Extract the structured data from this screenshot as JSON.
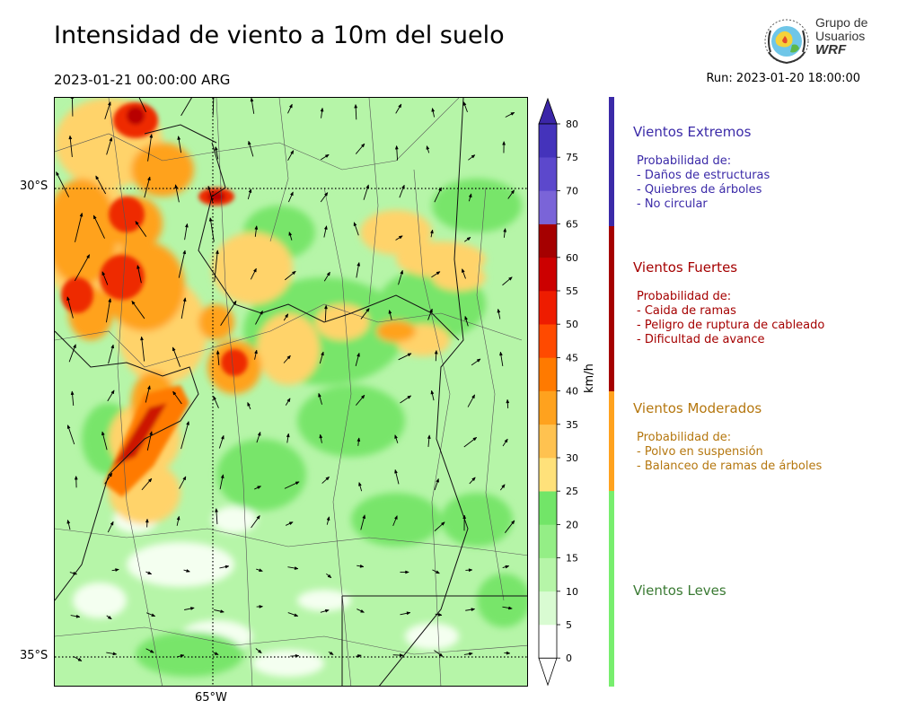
{
  "header": {
    "title": "Intensidad de viento a 10m del suelo",
    "valid_time": "2023-01-21 00:00:00 ARG",
    "run": "Run: 2023-01-20 18:00:00"
  },
  "logo": {
    "line1": "Grupo de",
    "line2": "Usuarios",
    "line3": "WRF"
  },
  "map": {
    "lat_labels": [
      "30°S",
      "35°S"
    ],
    "lon_labels": [
      "65°W"
    ]
  },
  "colorbar": {
    "unit": "km/h",
    "ticks": [
      "0",
      "5",
      "10",
      "15",
      "20",
      "25",
      "30",
      "35",
      "40",
      "45",
      "50",
      "55",
      "60",
      "65",
      "70",
      "75",
      "80"
    ],
    "colors": [
      "#ffffff",
      "#d9fbd2",
      "#b6f5a8",
      "#94ee86",
      "#72e568",
      "#ffe17a",
      "#ffc250",
      "#ffa21e",
      "#ff7a00",
      "#ff4a00",
      "#ee1c00",
      "#cc0000",
      "#a50000",
      "#7a64d8",
      "#5c48cc",
      "#4433bb"
    ],
    "extend_max_color": "#3b26a8"
  },
  "legend": {
    "extremos": {
      "title": "Vientos Extremos",
      "lines": [
        "Probabilidad de:",
        "- Daños de estructuras",
        "- Quiebres de árboles",
        "- No circular"
      ],
      "color": "#3b2aa8"
    },
    "fuertes": {
      "title": "Vientos Fuertes",
      "lines": [
        "Probabilidad de:",
        "- Caida de ramas",
        "- Peligro de ruptura de cableado",
        "- Dificultad de avance"
      ],
      "color": "#a50000"
    },
    "moderados": {
      "title": "Vientos Moderados",
      "lines": [
        "Probabilidad de:",
        "- Polvo en suspensión",
        "- Balanceo de ramas de árboles"
      ],
      "color": "#b5770f",
      "bar_color": "#ffa21e"
    },
    "leves": {
      "title": "Vientos Leves",
      "color": "#3a7a33",
      "bar_color": "#78ee6e"
    }
  }
}
